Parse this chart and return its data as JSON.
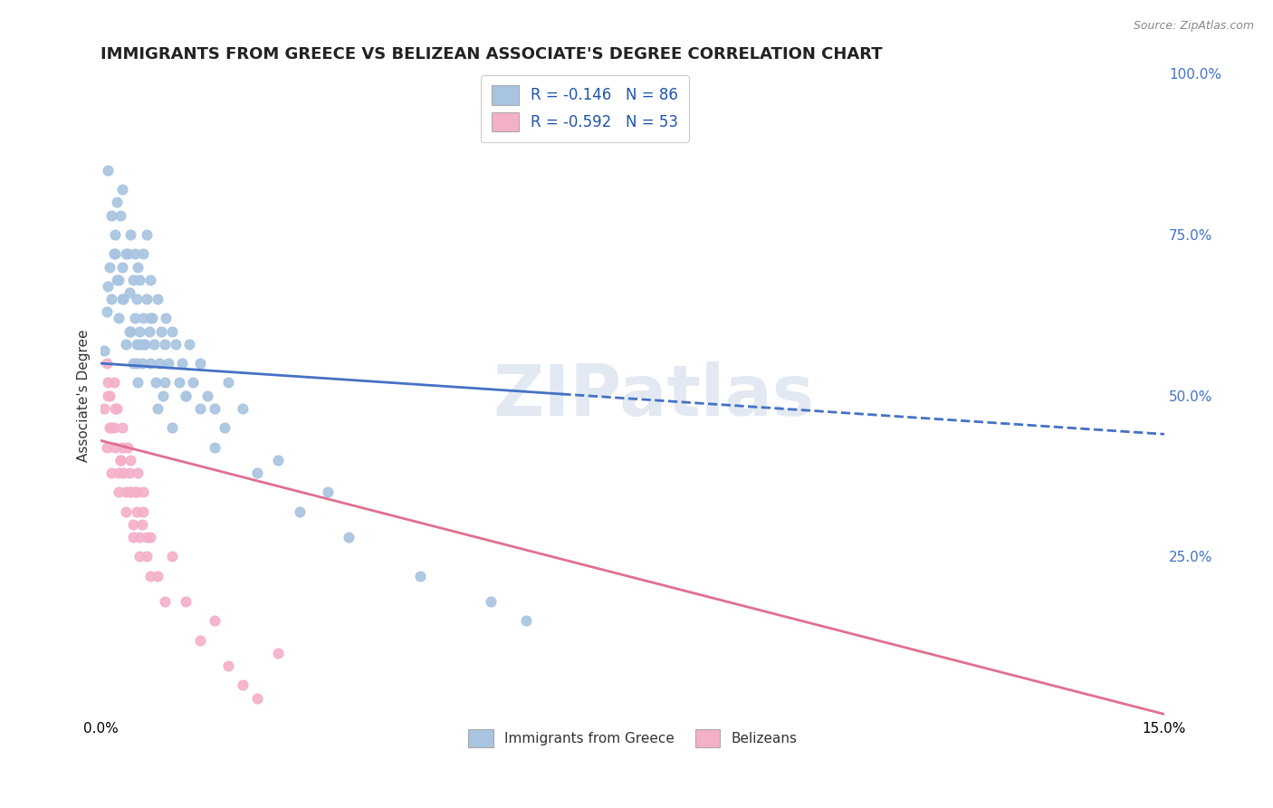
{
  "title": "IMMIGRANTS FROM GREECE VS BELIZEAN ASSOCIATE'S DEGREE CORRELATION CHART",
  "source_text": "Source: ZipAtlas.com",
  "ylabel": "Associate's Degree",
  "xlim": [
    0.0,
    15.0
  ],
  "ylim": [
    0.0,
    100.0
  ],
  "x_ticks": [
    0.0,
    15.0
  ],
  "x_tick_labels": [
    "0.0%",
    "15.0%"
  ],
  "y_ticks_right": [
    25.0,
    50.0,
    75.0,
    100.0
  ],
  "y_tick_labels_right": [
    "25.0%",
    "50.0%",
    "75.0%",
    "100.0%"
  ],
  "background_color": "#ffffff",
  "grid_color": "#cccccc",
  "blue_scatter_x": [
    0.05,
    0.08,
    0.1,
    0.12,
    0.15,
    0.18,
    0.2,
    0.22,
    0.22,
    0.25,
    0.28,
    0.3,
    0.3,
    0.32,
    0.35,
    0.38,
    0.4,
    0.42,
    0.42,
    0.45,
    0.45,
    0.48,
    0.48,
    0.5,
    0.5,
    0.52,
    0.52,
    0.55,
    0.55,
    0.58,
    0.6,
    0.6,
    0.62,
    0.65,
    0.65,
    0.68,
    0.7,
    0.7,
    0.72,
    0.75,
    0.78,
    0.8,
    0.82,
    0.85,
    0.88,
    0.9,
    0.92,
    0.95,
    1.0,
    1.05,
    1.1,
    1.15,
    1.2,
    1.25,
    1.3,
    1.4,
    1.5,
    1.6,
    1.8,
    2.0,
    0.1,
    0.15,
    0.2,
    0.25,
    0.3,
    0.35,
    0.4,
    0.5,
    0.6,
    0.7,
    0.8,
    0.9,
    1.0,
    1.2,
    1.4,
    1.6,
    2.2,
    2.8,
    3.5,
    4.5,
    5.5,
    6.0,
    3.2,
    2.5,
    1.75,
    0.55
  ],
  "blue_scatter_y": [
    57,
    63,
    67,
    70,
    65,
    72,
    75,
    68,
    80,
    62,
    78,
    70,
    82,
    65,
    58,
    72,
    66,
    60,
    75,
    68,
    55,
    62,
    72,
    58,
    65,
    70,
    52,
    60,
    68,
    55,
    62,
    72,
    58,
    65,
    75,
    60,
    68,
    55,
    62,
    58,
    52,
    65,
    55,
    60,
    50,
    58,
    62,
    55,
    60,
    58,
    52,
    55,
    50,
    58,
    52,
    55,
    50,
    48,
    52,
    48,
    85,
    78,
    72,
    68,
    65,
    72,
    60,
    55,
    58,
    62,
    48,
    52,
    45,
    50,
    48,
    42,
    38,
    32,
    28,
    22,
    18,
    15,
    35,
    40,
    45,
    58
  ],
  "pink_scatter_x": [
    0.05,
    0.08,
    0.1,
    0.12,
    0.15,
    0.18,
    0.2,
    0.22,
    0.25,
    0.28,
    0.3,
    0.32,
    0.35,
    0.38,
    0.4,
    0.42,
    0.45,
    0.48,
    0.5,
    0.52,
    0.55,
    0.58,
    0.6,
    0.65,
    0.7,
    0.1,
    0.15,
    0.2,
    0.25,
    0.3,
    0.35,
    0.4,
    0.45,
    0.5,
    0.55,
    0.6,
    0.65,
    0.7,
    0.8,
    0.9,
    1.0,
    1.2,
    1.4,
    1.6,
    1.8,
    2.0,
    2.2,
    2.5,
    0.08,
    0.12,
    0.18,
    0.28,
    0.42
  ],
  "pink_scatter_y": [
    48,
    42,
    50,
    45,
    38,
    52,
    42,
    48,
    35,
    40,
    45,
    38,
    32,
    42,
    35,
    40,
    28,
    35,
    32,
    38,
    25,
    30,
    35,
    28,
    22,
    52,
    45,
    48,
    38,
    42,
    35,
    38,
    30,
    35,
    28,
    32,
    25,
    28,
    22,
    18,
    25,
    18,
    12,
    15,
    8,
    5,
    3,
    10,
    55,
    50,
    45,
    40,
    35
  ],
  "blue_trend_x0": 0.0,
  "blue_trend_y0": 55.0,
  "blue_trend_x1": 15.0,
  "blue_trend_y1": 44.0,
  "blue_solid_end": 6.5,
  "pink_trend_x0": 0.0,
  "pink_trend_y0": 43.0,
  "pink_trend_x1": 15.0,
  "pink_trend_y1": 0.5,
  "blue_color": "#a8c4e0",
  "blue_line_color": "#4472c4",
  "pink_color": "#f4b0c8",
  "pink_line_color": "#e07090",
  "legend_label1": "R = -0.146   N = 86",
  "legend_label2": "R = -0.592   N = 53",
  "series_label1": "Immigrants from Greece",
  "series_label2": "Belizeans",
  "watermark": "ZIPatlas",
  "title_fontsize": 13,
  "axis_fontsize": 11,
  "tick_fontsize": 11
}
